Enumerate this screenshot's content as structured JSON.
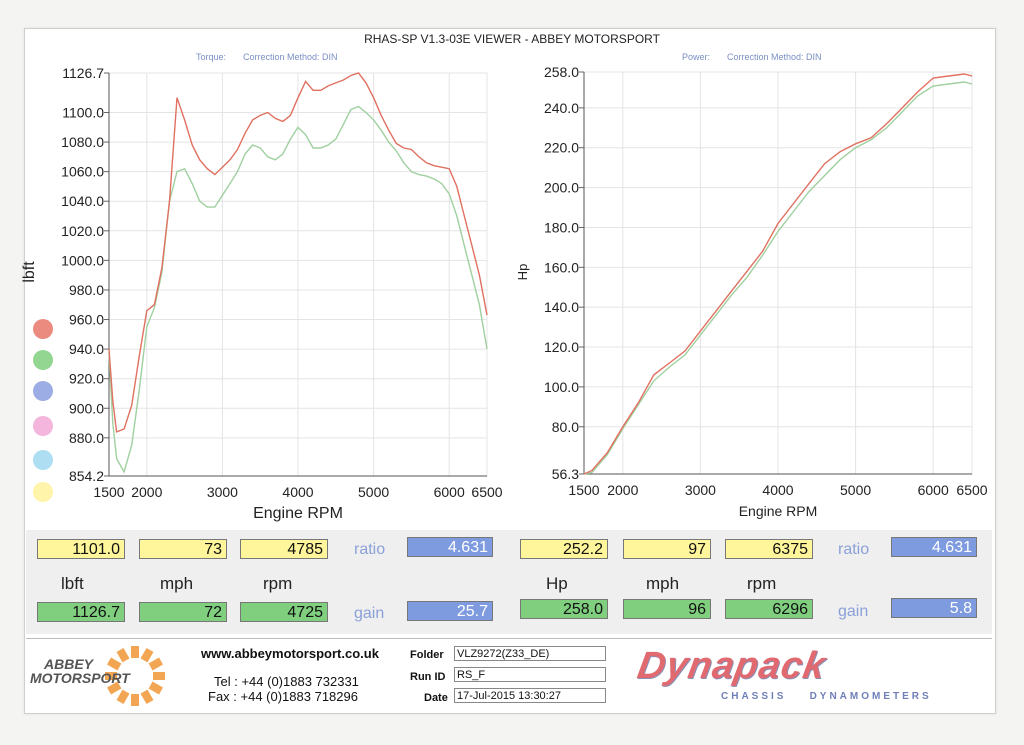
{
  "header": {
    "title": "RHAS-SP V1.3-03E VIEWER - ABBEY MOTORSPORT",
    "torque_sub": [
      "Torque:",
      "Correction Method: DIN"
    ],
    "power_sub": [
      "Power:",
      "Correction Method: DIN"
    ]
  },
  "legend_colors": [
    "#e8776a",
    "#7fcf7f",
    "#8b9fe0",
    "#f2a9d6",
    "#9fd8f0",
    "#fff29a"
  ],
  "chart_data": [
    {
      "type": "line",
      "ylabel": "lbft",
      "xlabel": "Engine RPM",
      "xlim": [
        1500,
        6500
      ],
      "ylim": [
        854.2,
        1126.7
      ],
      "xticks": [
        1500,
        2000,
        3000,
        4000,
        5000,
        6000,
        6500
      ],
      "xtick_labels": [
        "1500",
        "2000",
        "3000",
        "4000",
        "5000",
        "6000",
        "6500"
      ],
      "yticks": [
        854.2,
        880.0,
        900.0,
        920.0,
        940.0,
        960.0,
        980.0,
        1000.0,
        1020.0,
        1040.0,
        1060.0,
        1080.0,
        1100.0,
        1126.7
      ],
      "ytick_labels": [
        "854.2",
        "880.0",
        "900.0",
        "920.0",
        "940.0",
        "960.0",
        "980.0",
        "1000.0",
        "1020.0",
        "1040.0",
        "1060.0",
        "1080.0",
        "1100.0",
        "1126.7"
      ],
      "series": [
        {
          "color": "#e07060",
          "x": [
            1500,
            1550,
            1600,
            1700,
            1800,
            1900,
            2000,
            2100,
            2200,
            2300,
            2400,
            2500,
            2600,
            2700,
            2800,
            2900,
            3000,
            3100,
            3200,
            3300,
            3400,
            3500,
            3600,
            3700,
            3800,
            3900,
            4000,
            4100,
            4200,
            4300,
            4400,
            4500,
            4600,
            4700,
            4800,
            4900,
            5000,
            5100,
            5200,
            5300,
            5400,
            5500,
            5600,
            5700,
            5800,
            5900,
            6000,
            6100,
            6200,
            6300,
            6400,
            6500
          ],
          "y": [
            940,
            905,
            884,
            886,
            902,
            935,
            966,
            970,
            995,
            1040,
            1110,
            1095,
            1078,
            1068,
            1062,
            1058,
            1063,
            1068,
            1075,
            1086,
            1095,
            1098,
            1100,
            1096,
            1094,
            1098,
            1110,
            1121,
            1115,
            1115,
            1118,
            1120,
            1122,
            1125,
            1126.7,
            1120,
            1110,
            1098,
            1088,
            1079,
            1076,
            1075,
            1070,
            1066,
            1064,
            1063,
            1062,
            1050,
            1030,
            1010,
            990,
            963
          ]
        },
        {
          "color": "#9fd09f",
          "x": [
            1500,
            1550,
            1600,
            1700,
            1800,
            1900,
            2000,
            2100,
            2200,
            2300,
            2400,
            2500,
            2600,
            2700,
            2800,
            2900,
            3000,
            3100,
            3200,
            3300,
            3400,
            3500,
            3600,
            3700,
            3800,
            3900,
            4000,
            4100,
            4200,
            4300,
            4400,
            4500,
            4600,
            4700,
            4800,
            4900,
            5000,
            5100,
            5200,
            5300,
            5400,
            5500,
            5600,
            5700,
            5800,
            5900,
            6000,
            6100,
            6200,
            6300,
            6400,
            6500
          ],
          "y": [
            938,
            890,
            866,
            857,
            875,
            912,
            955,
            968,
            992,
            1040,
            1060,
            1062,
            1052,
            1040,
            1036,
            1036,
            1044,
            1052,
            1060,
            1072,
            1078,
            1076,
            1070,
            1068,
            1072,
            1082,
            1090,
            1085,
            1076,
            1076,
            1078,
            1082,
            1092,
            1102,
            1104,
            1100,
            1095,
            1088,
            1080,
            1074,
            1066,
            1060,
            1058,
            1057,
            1055,
            1052,
            1045,
            1030,
            1010,
            990,
            970,
            940
          ]
        }
      ]
    },
    {
      "type": "line",
      "ylabel": "Hp",
      "xlabel": "Engine RPM",
      "xlim": [
        1500,
        6500
      ],
      "ylim": [
        56.3,
        258.0
      ],
      "xticks": [
        1500,
        2000,
        3000,
        4000,
        5000,
        6000,
        6500
      ],
      "xtick_labels": [
        "1500",
        "2000",
        "3000",
        "4000",
        "5000",
        "6000",
        "6500"
      ],
      "yticks": [
        56.3,
        80.0,
        100.0,
        120.0,
        140.0,
        160.0,
        180.0,
        200.0,
        220.0,
        240.0,
        258.0
      ],
      "ytick_labels": [
        "56.3",
        "80.0",
        "100.0",
        "120.0",
        "140.0",
        "160.0",
        "180.0",
        "200.0",
        "220.0",
        "240.0",
        "258.0"
      ],
      "series": [
        {
          "color": "#e07060",
          "x": [
            1500,
            1600,
            1800,
            2000,
            2200,
            2400,
            2600,
            2800,
            3000,
            3200,
            3400,
            3600,
            3800,
            4000,
            4200,
            4400,
            4600,
            4800,
            5000,
            5200,
            5400,
            5600,
            5800,
            6000,
            6200,
            6400,
            6500
          ],
          "y": [
            56.3,
            58,
            67,
            80,
            92,
            106,
            112,
            118,
            128,
            138,
            148,
            158,
            168,
            182,
            192,
            202,
            212,
            218,
            222,
            225,
            232,
            240,
            248,
            255,
            256,
            257,
            256
          ]
        },
        {
          "color": "#9fd09f",
          "x": [
            1500,
            1600,
            1800,
            2000,
            2200,
            2400,
            2600,
            2800,
            3000,
            3200,
            3400,
            3600,
            3800,
            4000,
            4200,
            4400,
            4600,
            4800,
            5000,
            5200,
            5400,
            5600,
            5800,
            6000,
            6200,
            6400,
            6500
          ],
          "y": [
            56.3,
            57,
            66,
            79,
            91,
            103,
            110,
            116,
            126,
            136,
            146,
            155,
            166,
            178,
            188,
            198,
            206,
            214,
            220,
            224,
            230,
            238,
            246,
            251,
            252,
            253,
            252
          ]
        }
      ]
    }
  ],
  "readouts": {
    "left": {
      "top": [
        "1101.0",
        "73",
        "4785"
      ],
      "units": [
        "lbft",
        "mph",
        "rpm"
      ],
      "bottom": [
        "1126.7",
        "72",
        "4725"
      ],
      "ratio_label": "ratio",
      "ratio_value": "4.631",
      "gain_label": "gain",
      "gain_value": "25.7"
    },
    "right": {
      "top": [
        "252.2",
        "97",
        "6375"
      ],
      "units": [
        "Hp",
        "mph",
        "rpm"
      ],
      "bottom": [
        "258.0",
        "96",
        "6296"
      ],
      "ratio_label": "ratio",
      "ratio_value": "4.631",
      "gain_label": "gain",
      "gain_value": "5.8"
    }
  },
  "footer": {
    "logo_line1": "ABBEY",
    "logo_line2": "MOTORSPORT",
    "website": "www.abbeymotorsport.co.uk",
    "tel": "Tel : +44 (0)1883 732331",
    "fax": "Fax : +44 (0)1883 718296",
    "folder_label": "Folder",
    "folder_value": "VLZ9272(Z33_DE)",
    "runid_label": "Run ID",
    "runid_value": "RS_F",
    "date_label": "Date",
    "date_value": "17-Jul-2015  13:30:27",
    "brand": "Dynapack",
    "brand_sub": "CHASSIS    DYNAMOMETERS"
  }
}
